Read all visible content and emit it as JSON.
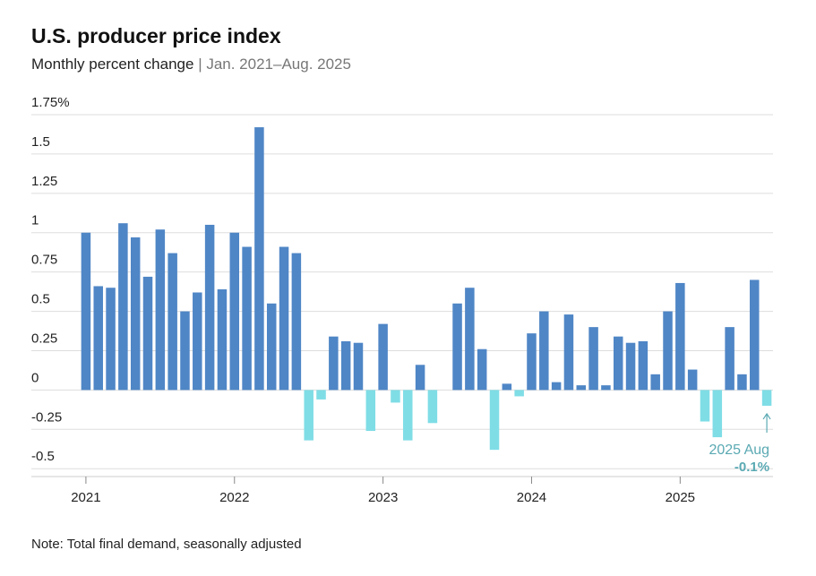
{
  "chart_data": {
    "type": "bar",
    "title": "U.S. producer price index",
    "subtitle": "Monthly percent change",
    "subtitle_range": "| Jan. 2021–Aug. 2025",
    "note": "Note: Total final demand, seasonally adjusted",
    "categories": [
      "2021",
      null,
      null,
      null,
      null,
      null,
      null,
      null,
      null,
      null,
      null,
      null,
      "2022",
      null,
      null,
      null,
      null,
      null,
      null,
      null,
      null,
      null,
      null,
      null,
      "2023",
      null,
      null,
      null,
      null,
      null,
      null,
      null,
      null,
      null,
      null,
      null,
      "2024",
      null,
      null,
      null,
      null,
      null,
      null,
      null,
      null,
      null,
      null,
      null,
      "2025",
      null,
      null,
      null,
      null,
      null,
      null,
      null
    ],
    "values": [
      1.0,
      0.66,
      0.65,
      1.06,
      0.97,
      0.72,
      1.02,
      0.87,
      0.5,
      0.62,
      1.05,
      0.64,
      1.0,
      0.91,
      1.67,
      0.55,
      0.91,
      0.87,
      -0.32,
      -0.06,
      0.34,
      0.31,
      0.3,
      -0.26,
      0.42,
      -0.08,
      -0.32,
      0.16,
      -0.21,
      0,
      0.55,
      0.65,
      0.26,
      -0.38,
      0.04,
      -0.04,
      0.36,
      0.5,
      0.05,
      0.48,
      0.03,
      0.4,
      0.03,
      0.34,
      0.3,
      0.31,
      0.1,
      0.5,
      0.68,
      0.13,
      -0.2,
      -0.3,
      0.4,
      0.1,
      0.7,
      -0.1
    ],
    "value_labels": [
      null,
      null,
      null,
      null,
      null,
      null,
      null,
      null,
      null,
      null,
      null,
      null,
      null,
      null,
      null,
      null,
      null,
      null,
      null,
      null,
      null,
      null,
      null,
      null,
      null,
      null,
      null,
      null,
      null,
      null,
      null,
      null,
      null,
      null,
      null,
      null,
      null,
      null,
      null,
      null,
      null,
      null,
      null,
      null,
      null,
      null,
      null,
      null,
      null,
      null,
      null,
      null,
      null,
      null,
      null,
      "-0.1%"
    ],
    "annotation": "2025 Aug",
    "color_positive": "#4f86c6",
    "color_negative": "#7fdde6",
    "ylim": [
      -0.55,
      1.75
    ],
    "yticks": [
      {
        "value": 1.75,
        "label": "1.75%"
      },
      1.5,
      1.25,
      1,
      0.75,
      0.5,
      0.25,
      0,
      -0.25,
      -0.5
    ],
    "grid": true
  }
}
